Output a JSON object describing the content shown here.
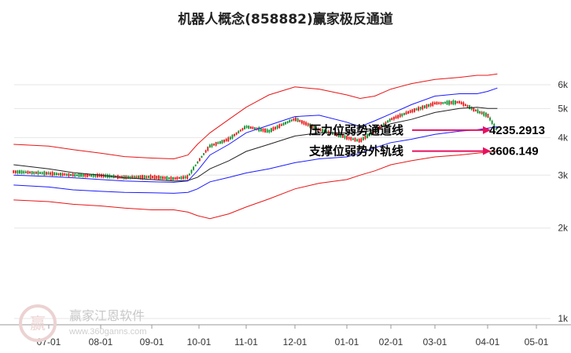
{
  "chart_data": {
    "type": "line",
    "title": "机器人概念(858882)赢家极反通道",
    "y_scale": "log",
    "ylim": [
      1000,
      7000
    ],
    "y_ticks": [
      {
        "value": 1000,
        "label": "1k"
      },
      {
        "value": 2000,
        "label": "2k"
      },
      {
        "value": 3000,
        "label": "3k"
      },
      {
        "value": 4000,
        "label": "4k"
      },
      {
        "value": 5000,
        "label": "5k"
      },
      {
        "value": 6000,
        "label": "6k"
      }
    ],
    "x_ticks": [
      "07-01",
      "08-01",
      "09-01",
      "10-01",
      "11-01",
      "12-01",
      "01-01",
      "02-01",
      "03-01",
      "04-01",
      "05-01"
    ],
    "x": [
      "06-20",
      "07-01",
      "07-15",
      "08-01",
      "08-15",
      "09-01",
      "09-15",
      "09-24",
      "09-30",
      "10-08",
      "10-20",
      "11-01",
      "11-15",
      "12-01",
      "12-15",
      "01-01",
      "01-10",
      "01-20",
      "02-01",
      "02-15",
      "03-01",
      "03-15",
      "03-25",
      "04-01",
      "04-07"
    ],
    "series": [
      {
        "role": "price",
        "color": "#333333",
        "values": [
          3080,
          3040,
          3000,
          2990,
          2950,
          2960,
          2920,
          2960,
          3300,
          3750,
          3950,
          4350,
          4200,
          4620,
          4250,
          4000,
          3900,
          4200,
          4600,
          4900,
          5200,
          5250,
          4900,
          4750,
          4200
        ]
      },
      {
        "role": "middle-band",
        "color": "#222222",
        "values": [
          3250,
          3150,
          3060,
          3000,
          2940,
          2900,
          2870,
          2880,
          2950,
          3150,
          3350,
          3600,
          3800,
          4050,
          4150,
          4150,
          4150,
          4250,
          4450,
          4600,
          4850,
          5000,
          5050,
          5000,
          5000
        ]
      },
      {
        "role": "upper-inner",
        "color": "#1a1aff",
        "values": [
          3000,
          2970,
          2940,
          2900,
          2870,
          2850,
          2840,
          2870,
          3100,
          3500,
          3800,
          4150,
          4400,
          4700,
          4750,
          4500,
          4350,
          4550,
          4800,
          5150,
          5500,
          5600,
          5600,
          5700,
          5850
        ]
      },
      {
        "role": "lower-inner",
        "color": "#1a1aff",
        "values": [
          2780,
          2740,
          2680,
          2650,
          2630,
          2620,
          2610,
          2630,
          2700,
          2850,
          2950,
          3050,
          3150,
          3300,
          3400,
          3450,
          3550,
          3700,
          3850,
          3950,
          4100,
          4200,
          4250,
          4300,
          4350
        ]
      },
      {
        "role": "upper-outer",
        "color": "#e81515",
        "values": [
          3800,
          3750,
          3650,
          3550,
          3460,
          3420,
          3400,
          3500,
          3800,
          4150,
          4600,
          5050,
          5550,
          5900,
          5800,
          5550,
          5400,
          5500,
          5800,
          6050,
          6250,
          6350,
          6450,
          6450,
          6520
        ]
      },
      {
        "role": "lower-outer",
        "color": "#e81515",
        "values": [
          2480,
          2450,
          2400,
          2370,
          2330,
          2300,
          2300,
          2260,
          2200,
          2150,
          2230,
          2350,
          2500,
          2700,
          2820,
          2900,
          3000,
          3100,
          3250,
          3350,
          3450,
          3500,
          3550,
          3580,
          3610
        ]
      }
    ],
    "annotations": [
      {
        "label": "压力位弱势通道线",
        "value": "4235.2913",
        "level": 4235.2913,
        "color": "#e8115e"
      },
      {
        "label": "支撑位弱势外轨线",
        "value": "3606.149",
        "level": 3606.149,
        "color": "#e8115e"
      }
    ],
    "grid": true
  },
  "watermark": {
    "logo_text": "赢",
    "name": "赢家江恩软件",
    "url": "www.360ganns.com"
  }
}
